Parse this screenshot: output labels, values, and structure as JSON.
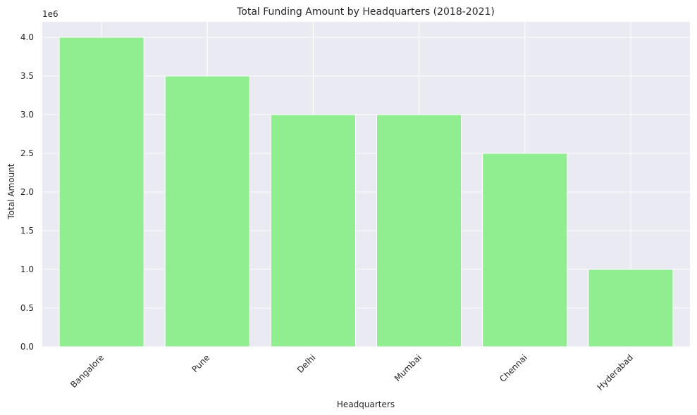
{
  "chart_data": {
    "type": "bar",
    "title": "Total Funding Amount by Headquarters (2018-2021)",
    "xlabel": "Headquarters",
    "ylabel": "Total Amount",
    "y_offset_label": "1e6",
    "categories": [
      "Bangalore",
      "Pune",
      "Delhi",
      "Mumbai",
      "Chennai",
      "Hyderabad"
    ],
    "values": [
      4000000,
      3500000,
      3000000,
      3000000,
      2500000,
      1000000
    ],
    "ylim": [
      0,
      4200000
    ],
    "yticks": [
      0,
      500000,
      1000000,
      1500000,
      2000000,
      2500000,
      3000000,
      3500000,
      4000000
    ],
    "ytick_labels": [
      "0.0",
      "0.5",
      "1.0",
      "1.5",
      "2.0",
      "2.5",
      "3.0",
      "3.5",
      "4.0"
    ],
    "x_tick_rotation_deg": 45,
    "grid": true,
    "legend": "none",
    "colors": {
      "bar": "#90ee90",
      "plot_background": "#eaeaf2",
      "grid": "#ffffff",
      "text": "#262626"
    }
  }
}
